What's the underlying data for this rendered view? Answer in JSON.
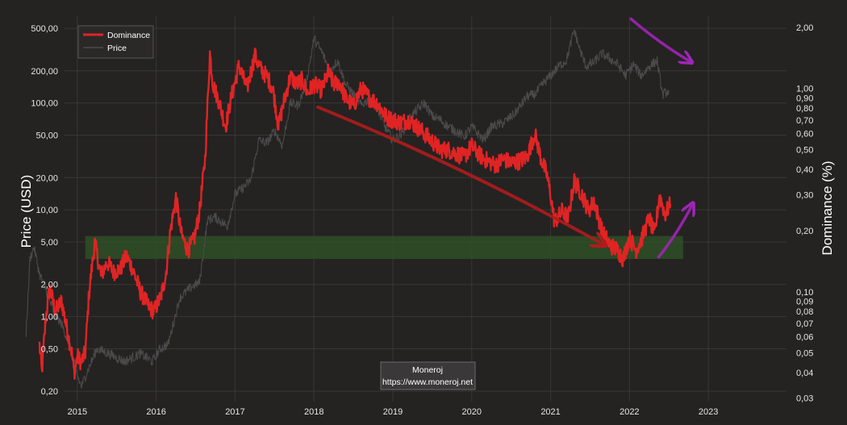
{
  "chart_data": {
    "type": "line",
    "title": "",
    "ylabel_left": "Price (USD)",
    "ylabel_right": "Dominance (%)",
    "x_range": [
      2014.35,
      2023.5
    ],
    "x_ticks": [
      "2015",
      "2016",
      "2017",
      "2018",
      "2019",
      "2020",
      "2021",
      "2022",
      "2023"
    ],
    "y_left_scale": "log",
    "y_left_range": [
      0.16,
      650
    ],
    "y_left_ticks": [
      {
        "value": 500,
        "label": "500,00"
      },
      {
        "value": 200,
        "label": "200,00"
      },
      {
        "value": 100,
        "label": "100,00"
      },
      {
        "value": 50,
        "label": "50,00"
      },
      {
        "value": 20,
        "label": "20,00"
      },
      {
        "value": 10,
        "label": "10,00"
      },
      {
        "value": 5,
        "label": "5,00"
      },
      {
        "value": 2,
        "label": "2,00"
      },
      {
        "value": 1,
        "label": "1,00"
      },
      {
        "value": 0.5,
        "label": "0,50"
      },
      {
        "value": 0.2,
        "label": "0,20"
      }
    ],
    "y_right_scale": "log",
    "y_right_range": [
      0.0288,
      2.27
    ],
    "y_right_ticks": [
      {
        "value": 2,
        "label": "2,00"
      },
      {
        "value": 1,
        "label": "1,00"
      },
      {
        "value": 0.9,
        "label": "0,90"
      },
      {
        "value": 0.8,
        "label": "0,80"
      },
      {
        "value": 0.7,
        "label": "0,70"
      },
      {
        "value": 0.6,
        "label": "0,60"
      },
      {
        "value": 0.5,
        "label": "0,50"
      },
      {
        "value": 0.4,
        "label": "0,40"
      },
      {
        "value": 0.3,
        "label": "0,30"
      },
      {
        "value": 0.2,
        "label": "0,20"
      },
      {
        "value": 0.1,
        "label": "0,10"
      },
      {
        "value": 0.09,
        "label": "0,09"
      },
      {
        "value": 0.08,
        "label": "0,08"
      },
      {
        "value": 0.07,
        "label": "0,07"
      },
      {
        "value": 0.06,
        "label": "0,06"
      },
      {
        "value": 0.05,
        "label": "0,05"
      },
      {
        "value": 0.04,
        "label": "0,04"
      },
      {
        "value": 0.03,
        "label": "0,03"
      }
    ],
    "grid": true,
    "legend": {
      "placement": "top-left",
      "entries": [
        "Dominance",
        "Price"
      ]
    },
    "series": [
      {
        "name": "Dominance",
        "axis": "right",
        "color": "#e02424",
        "points": [
          [
            2014.52,
            0.055
          ],
          [
            2014.55,
            0.04
          ],
          [
            2014.6,
            0.075
          ],
          [
            2014.65,
            0.105
          ],
          [
            2014.72,
            0.08
          ],
          [
            2014.8,
            0.09
          ],
          [
            2014.87,
            0.065
          ],
          [
            2014.93,
            0.05
          ],
          [
            2014.96,
            0.04
          ],
          [
            2015.0,
            0.048
          ],
          [
            2015.05,
            0.045
          ],
          [
            2015.1,
            0.05
          ],
          [
            2015.15,
            0.1
          ],
          [
            2015.22,
            0.175
          ],
          [
            2015.3,
            0.12
          ],
          [
            2015.38,
            0.14
          ],
          [
            2015.46,
            0.125
          ],
          [
            2015.55,
            0.13
          ],
          [
            2015.62,
            0.15
          ],
          [
            2015.7,
            0.13
          ],
          [
            2015.8,
            0.1
          ],
          [
            2015.9,
            0.085
          ],
          [
            2015.97,
            0.08
          ],
          [
            2016.06,
            0.095
          ],
          [
            2016.12,
            0.12
          ],
          [
            2016.18,
            0.2
          ],
          [
            2016.25,
            0.29
          ],
          [
            2016.32,
            0.19
          ],
          [
            2016.4,
            0.16
          ],
          [
            2016.48,
            0.18
          ],
          [
            2016.55,
            0.25
          ],
          [
            2016.62,
            0.45
          ],
          [
            2016.68,
            1.5
          ],
          [
            2016.72,
            1.05
          ],
          [
            2016.8,
            0.85
          ],
          [
            2016.88,
            0.65
          ],
          [
            2016.95,
            0.9
          ],
          [
            2017.05,
            1.3
          ],
          [
            2017.15,
            1.0
          ],
          [
            2017.25,
            1.45
          ],
          [
            2017.32,
            1.25
          ],
          [
            2017.4,
            1.15
          ],
          [
            2017.48,
            1.0
          ],
          [
            2017.55,
            0.65
          ],
          [
            2017.6,
            0.8
          ],
          [
            2017.7,
            1.15
          ],
          [
            2017.78,
            1.05
          ],
          [
            2017.85,
            1.1
          ],
          [
            2017.92,
            0.95
          ],
          [
            2018.0,
            1.05
          ],
          [
            2018.1,
            0.98
          ],
          [
            2018.18,
            1.2
          ],
          [
            2018.25,
            1.05
          ],
          [
            2018.32,
            1.08
          ],
          [
            2018.4,
            0.9
          ],
          [
            2018.5,
            0.82
          ],
          [
            2018.6,
            1.0
          ],
          [
            2018.7,
            0.9
          ],
          [
            2018.8,
            0.85
          ],
          [
            2018.92,
            0.72
          ],
          [
            2019.0,
            0.7
          ],
          [
            2019.1,
            0.68
          ],
          [
            2019.2,
            0.7
          ],
          [
            2019.3,
            0.65
          ],
          [
            2019.4,
            0.6
          ],
          [
            2019.5,
            0.55
          ],
          [
            2019.6,
            0.5
          ],
          [
            2019.7,
            0.5
          ],
          [
            2019.8,
            0.48
          ],
          [
            2019.9,
            0.46
          ],
          [
            2020.0,
            0.52
          ],
          [
            2020.1,
            0.47
          ],
          [
            2020.2,
            0.44
          ],
          [
            2020.3,
            0.42
          ],
          [
            2020.4,
            0.45
          ],
          [
            2020.5,
            0.43
          ],
          [
            2020.6,
            0.44
          ],
          [
            2020.7,
            0.46
          ],
          [
            2020.8,
            0.6
          ],
          [
            2020.88,
            0.45
          ],
          [
            2020.95,
            0.38
          ],
          [
            2021.0,
            0.3
          ],
          [
            2021.05,
            0.22
          ],
          [
            2021.15,
            0.25
          ],
          [
            2021.22,
            0.23
          ],
          [
            2021.3,
            0.35
          ],
          [
            2021.4,
            0.3
          ],
          [
            2021.48,
            0.25
          ],
          [
            2021.55,
            0.28
          ],
          [
            2021.65,
            0.2
          ],
          [
            2021.75,
            0.17
          ],
          [
            2021.85,
            0.16
          ],
          [
            2021.92,
            0.145
          ],
          [
            2022.0,
            0.185
          ],
          [
            2022.08,
            0.16
          ],
          [
            2022.15,
            0.18
          ],
          [
            2022.25,
            0.23
          ],
          [
            2022.32,
            0.19
          ],
          [
            2022.38,
            0.3
          ],
          [
            2022.45,
            0.24
          ],
          [
            2022.52,
            0.27
          ]
        ]
      },
      {
        "name": "Price",
        "axis": "left",
        "color": "#4a4a4a",
        "points": [
          [
            2014.35,
            0.7
          ],
          [
            2014.4,
            3.5
          ],
          [
            2014.45,
            4.5
          ],
          [
            2014.52,
            2.5
          ],
          [
            2014.6,
            1.8
          ],
          [
            2014.7,
            1.1
          ],
          [
            2014.8,
            0.85
          ],
          [
            2014.9,
            0.55
          ],
          [
            2015.0,
            0.28
          ],
          [
            2015.05,
            0.22
          ],
          [
            2015.12,
            0.3
          ],
          [
            2015.25,
            0.5
          ],
          [
            2015.4,
            0.45
          ],
          [
            2015.6,
            0.38
          ],
          [
            2015.8,
            0.45
          ],
          [
            2015.95,
            0.38
          ],
          [
            2016.05,
            0.5
          ],
          [
            2016.15,
            0.55
          ],
          [
            2016.3,
            1.5
          ],
          [
            2016.45,
            1.9
          ],
          [
            2016.55,
            2.1
          ],
          [
            2016.65,
            8.0
          ],
          [
            2016.75,
            8.5
          ],
          [
            2016.9,
            7.0
          ],
          [
            2017.0,
            14.0
          ],
          [
            2017.1,
            16.0
          ],
          [
            2017.2,
            19.0
          ],
          [
            2017.3,
            45.0
          ],
          [
            2017.4,
            42.0
          ],
          [
            2017.5,
            55.0
          ],
          [
            2017.6,
            40.0
          ],
          [
            2017.7,
            100.0
          ],
          [
            2017.8,
            95.0
          ],
          [
            2017.9,
            150.0
          ],
          [
            2018.0,
            400.0
          ],
          [
            2018.1,
            300.0
          ],
          [
            2018.2,
            200.0
          ],
          [
            2018.3,
            250.0
          ],
          [
            2018.4,
            150.0
          ],
          [
            2018.5,
            120.0
          ],
          [
            2018.6,
            95.0
          ],
          [
            2018.7,
            110.0
          ],
          [
            2018.8,
            90.0
          ],
          [
            2018.9,
            60.0
          ],
          [
            2019.0,
            45.0
          ],
          [
            2019.1,
            50.0
          ],
          [
            2019.2,
            70.0
          ],
          [
            2019.3,
            85.0
          ],
          [
            2019.4,
            100.0
          ],
          [
            2019.5,
            75.0
          ],
          [
            2019.6,
            70.0
          ],
          [
            2019.7,
            60.0
          ],
          [
            2019.8,
            55.0
          ],
          [
            2019.9,
            48.0
          ],
          [
            2020.0,
            60.0
          ],
          [
            2020.15,
            45.0
          ],
          [
            2020.25,
            60.0
          ],
          [
            2020.4,
            65.0
          ],
          [
            2020.55,
            80.0
          ],
          [
            2020.7,
            115.0
          ],
          [
            2020.8,
            120.0
          ],
          [
            2020.9,
            150.0
          ],
          [
            2021.0,
            180.0
          ],
          [
            2021.1,
            220.0
          ],
          [
            2021.2,
            250.0
          ],
          [
            2021.3,
            480.0
          ],
          [
            2021.38,
            300.0
          ],
          [
            2021.45,
            220.0
          ],
          [
            2021.55,
            240.0
          ],
          [
            2021.65,
            290.0
          ],
          [
            2021.75,
            260.0
          ],
          [
            2021.85,
            230.0
          ],
          [
            2021.95,
            180.0
          ],
          [
            2022.05,
            230.0
          ],
          [
            2022.15,
            180.0
          ],
          [
            2022.25,
            220.0
          ],
          [
            2022.35,
            250.0
          ],
          [
            2022.42,
            120.0
          ],
          [
            2022.5,
            130.0
          ]
        ]
      }
    ],
    "annotations": [
      {
        "type": "band",
        "color": "#2e4f26",
        "x_range": [
          2015.1,
          2022.68
        ],
        "y_right_range": [
          0.145,
          0.188
        ]
      },
      {
        "type": "arrow",
        "color": "#b01c1c",
        "from": [
          2018.05,
          0.81
        ],
        "to": [
          2021.68,
          0.17
        ]
      },
      {
        "type": "arrow",
        "color": "#a025b8",
        "from": [
          2022.02,
          2.2
        ],
        "to": [
          2022.78,
          1.35
        ]
      },
      {
        "type": "arrow",
        "color": "#a025b8",
        "from": [
          2022.37,
          0.148
        ],
        "to": [
          2022.8,
          0.27
        ]
      }
    ]
  },
  "legend": {
    "dominance": "Dominance",
    "price": "Price"
  },
  "watermark": {
    "line1": "Moneroj",
    "line2": "https://www.moneroj.net"
  },
  "colors": {
    "background": "#252222",
    "grid": "#3a3737",
    "dominance": "#e02424",
    "price": "#4a4a4a",
    "band": "#2e4f26",
    "trend_arrow": "#b01c1c",
    "purple_arrow": "#a025b8"
  }
}
